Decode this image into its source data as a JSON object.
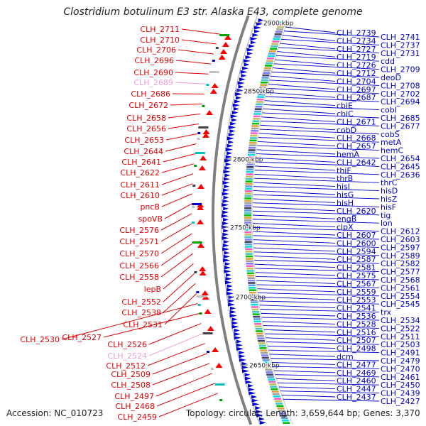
{
  "header": {
    "title": "Clostridium botulinum E3 str. Alaska E43, complete genome"
  },
  "footer": {
    "accession": "Accession: NC_010723",
    "topology": "Topology: circular; Length: 3,659,644 bp; Genes: 3,370"
  },
  "colors": {
    "left_label": "#e00000",
    "left_label_pseudo": "#e8a0d8",
    "right_label": "#0000cc",
    "backbone": "#808080",
    "forward_cds": "#ff0000",
    "reverse_cds": "#0000dd"
  },
  "scale_ticks": [
    "2900 kbp",
    "2850 kbp",
    "2800 kbp",
    "2750 kbp",
    "2700 kbp",
    "2650 kbp"
  ],
  "left_labels": [
    {
      "text": "CLH_2711",
      "pseudo": false
    },
    {
      "text": "CLH_2710",
      "pseudo": false
    },
    {
      "text": "CLH_2706",
      "pseudo": false
    },
    {
      "text": "CLH_2696",
      "pseudo": false
    },
    {
      "text": "CLH_2690",
      "pseudo": false
    },
    {
      "text": "CLH_2689",
      "pseudo": true
    },
    {
      "text": "CLH_2686",
      "pseudo": false
    },
    {
      "text": "CLH_2672",
      "pseudo": false
    },
    {
      "text": "CLH_2658",
      "pseudo": false
    },
    {
      "text": "CLH_2656",
      "pseudo": false
    },
    {
      "text": "CLH_2653",
      "pseudo": false
    },
    {
      "text": "CLH_2644",
      "pseudo": false
    },
    {
      "text": "CLH_2641",
      "pseudo": false
    },
    {
      "text": "CLH_2622",
      "pseudo": false
    },
    {
      "text": "CLH_2611",
      "pseudo": false
    },
    {
      "text": "CLH_2610",
      "pseudo": false
    },
    {
      "text": "pncB",
      "pseudo": false
    },
    {
      "text": "spoVB",
      "pseudo": false
    },
    {
      "text": "CLH_2576",
      "pseudo": false
    },
    {
      "text": "CLH_2571",
      "pseudo": false
    },
    {
      "text": "CLH_2570",
      "pseudo": false
    },
    {
      "text": "CLH_2566",
      "pseudo": false
    },
    {
      "text": "CLH_2558",
      "pseudo": false
    },
    {
      "text": "lepB",
      "pseudo": false
    },
    {
      "text": "CLH_2552",
      "pseudo": false
    },
    {
      "text": "CLH_2538",
      "pseudo": false
    },
    {
      "text": "CLH_2531",
      "pseudo": false
    },
    {
      "text": "CLH_2530",
      "pseudo": false
    },
    {
      "text": "CLH_2527",
      "pseudo": false
    },
    {
      "text": "CLH_2526",
      "pseudo": false
    },
    {
      "text": "CLH_2524",
      "pseudo": true
    },
    {
      "text": "CLH_2512",
      "pseudo": false
    },
    {
      "text": "CLH_2509",
      "pseudo": false
    },
    {
      "text": "CLH_2508",
      "pseudo": false
    },
    {
      "text": "CLH_2497",
      "pseudo": false
    },
    {
      "text": "CLH_2468",
      "pseudo": false
    },
    {
      "text": "CLH_2459",
      "pseudo": false
    }
  ],
  "right_labels": [
    "CLH_2739",
    "CLH_2741",
    "CLH_2734",
    "CLH_2737",
    "CLH_2727",
    "CLH_2731",
    "CLH_2719",
    "cdd",
    "CLH_2726",
    "CLH_2709",
    "CLH_2712",
    "deoD",
    "CLH_2704",
    "CLH_2708",
    "CLH_2697",
    "CLH_2702",
    "CLH_2687",
    "CLH_2694",
    "cbiE",
    "cobI",
    "cbiC",
    "CLH_2685",
    "CLH_2671",
    "CLH_2677",
    "cobD",
    "cobS",
    "CLH_2668",
    "metA",
    "CLH_2657",
    "hemC",
    "hemA",
    "CLH_2654",
    "CLH_2642",
    "CLH_2645",
    "thiF",
    "CLH_2636",
    "thrB",
    "thrC",
    "hisI",
    "hisD",
    "hisG",
    "hisZ",
    "hisH",
    "hisF",
    "CLH_2620",
    "tig",
    "engB",
    "lon",
    "clpX",
    "CLH_2612",
    "CLH_2607",
    "CLH_2603",
    "CLH_2600",
    "CLH_2597",
    "CLH_2594",
    "CLH_2589",
    "CLH_2587",
    "CLH_2582",
    "CLH_2581",
    "CLH_2577",
    "CLH_2575",
    "CLH_2568",
    "CLH_2567",
    "CLH_2561",
    "CLH_2559",
    "CLH_2554",
    "CLH_2553",
    "CLH_2545",
    "CLH_2541",
    "trx",
    "CLH_2536",
    "CLH_2534",
    "CLH_2528",
    "CLH_2522",
    "CLH_2516",
    "CLH_2511",
    "CLH_2507",
    "CLH_2503",
    "CLH_2498",
    "CLH_2491",
    "dcm",
    "CLH_2479",
    "CLH_2477",
    "CLH_2470",
    "CLH_2469",
    "CLH_2461",
    "CLH_2460",
    "CLH_2450",
    "CLH_2447",
    "CLH_2439",
    "CLH_2437",
    "CLH_2427"
  ]
}
